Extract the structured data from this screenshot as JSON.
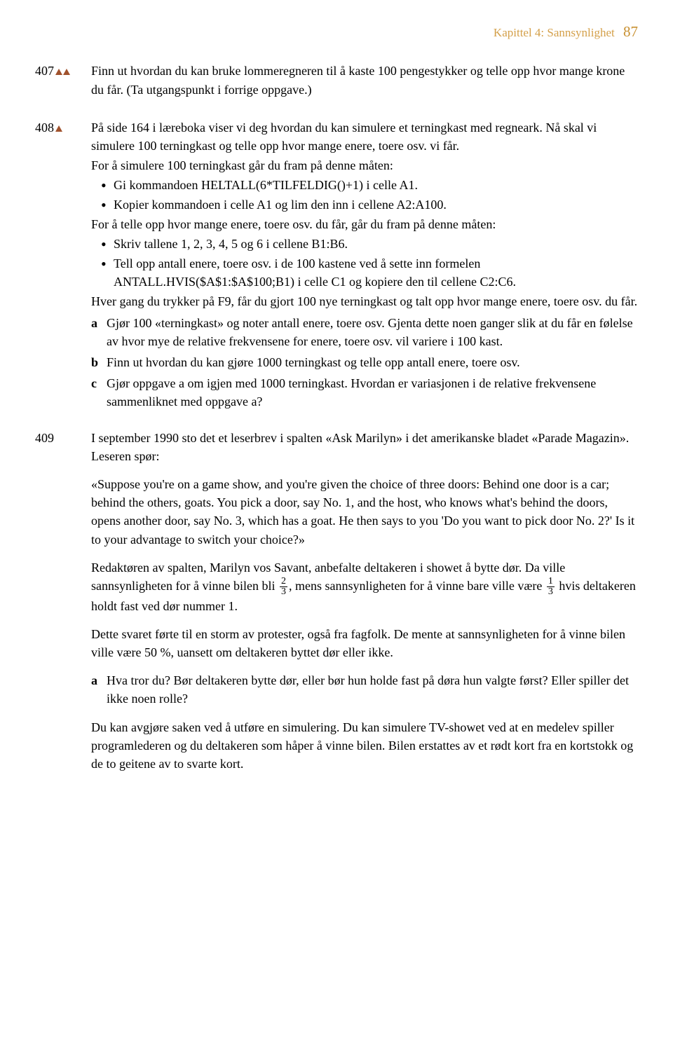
{
  "header": {
    "chapter": "Kapittel 4: Sannsynlighet",
    "page": "87"
  },
  "ex407": {
    "num": "407",
    "triangles": 2,
    "text": "Finn ut hvordan du kan bruke lommeregneren til å kaste 100 pengestykker og telle opp hvor mange krone du får. (Ta utgangspunkt i forrige oppgave.)"
  },
  "ex408": {
    "num": "408",
    "triangles": 1,
    "intro": "På side 164 i læreboka viser vi deg hvordan du kan simulere et terningkast med regneark. Nå skal vi simulere 100 terningkast og telle opp hvor mange enere, toere osv. vi får.",
    "line2": "For å simulere 100 terningkast går du fram på denne måten:",
    "b1": "Gi kommandoen HELTALL(6*TILFELDIG()+1) i celle A1.",
    "b2": "Kopier kommandoen i celle A1 og lim den inn i cellene A2:A100.",
    "line3": "For å telle opp hvor mange enere, toere osv. du får, går du fram på denne måten:",
    "b3": "Skriv tallene 1, 2, 3, 4, 5 og 6 i cellene B1:B6.",
    "b4": "Tell opp antall enere, toere osv. i de 100 kastene ved å sette inn formelen ANTALL.HVIS($A$1:$A$100;B1) i celle C1 og kopiere den til cellene C2:C6.",
    "line4": "Hver gang du trykker på F9, får du gjort 100 nye terningkast og talt opp hvor mange enere, toere osv. du får.",
    "a_label": "a",
    "a": "Gjør 100 «terningkast» og noter antall enere, toere osv. Gjenta dette noen ganger slik at du får en følelse av hvor mye de relative frekvensene for enere, toere osv. vil variere i 100 kast.",
    "b_label": "b",
    "b": "Finn ut hvordan du kan gjøre 1000 terningkast og telle opp antall enere, toere osv.",
    "c_label": "c",
    "c": "Gjør oppgave a om igjen med 1000 terningkast. Hvordan er variasjonen i de relative frekvensene sammenliknet med oppgave a?"
  },
  "ex409": {
    "num": "409",
    "intro": "I september 1990 sto det et leserbrev i spalten «Ask Marilyn» i det amerikanske bladet «Parade Magazin». Leseren spør:",
    "quote": "«Suppose you're on a game show, and you're given the choice of three doors: Behind one door is a car; behind the others, goats. You pick a door, say No. 1, and the host, who knows what's behind the doors, opens another door, say No. 3, which has a goat. He then says to you 'Do you want to pick door No. 2?' Is it to your advantage to switch your choice?»",
    "p3a": "Redaktøren av spalten, Marilyn vos Savant, anbefalte deltakeren i showet å bytte dør. Da ville sannsynligheten for å vinne bilen bli ",
    "f1n": "2",
    "f1d": "3",
    "p3b": ", mens sannsynligheten for å vinne bare ville være ",
    "f2n": "1",
    "f2d": "3",
    "p3c": " hvis deltakeren holdt fast ved dør nummer 1.",
    "p4": "Dette svaret førte til en storm av protester, også fra fagfolk. De mente at sannsynligheten for å vinne bilen ville være 50 %, uansett om deltakeren byttet dør eller ikke.",
    "a_label": "a",
    "a": "Hva tror du? Bør deltakeren bytte dør, eller bør hun holde fast på døra hun valgte først? Eller spiller det ikke noen rolle?",
    "p5": "Du kan avgjøre saken ved å utføre en simulering. Du kan simulere TV-showet ved at en medelev spiller programlederen og du deltakeren som håper å vinne bilen. Bilen erstattes av et rødt kort fra en kortstokk og de to geitene av to svarte kort."
  }
}
